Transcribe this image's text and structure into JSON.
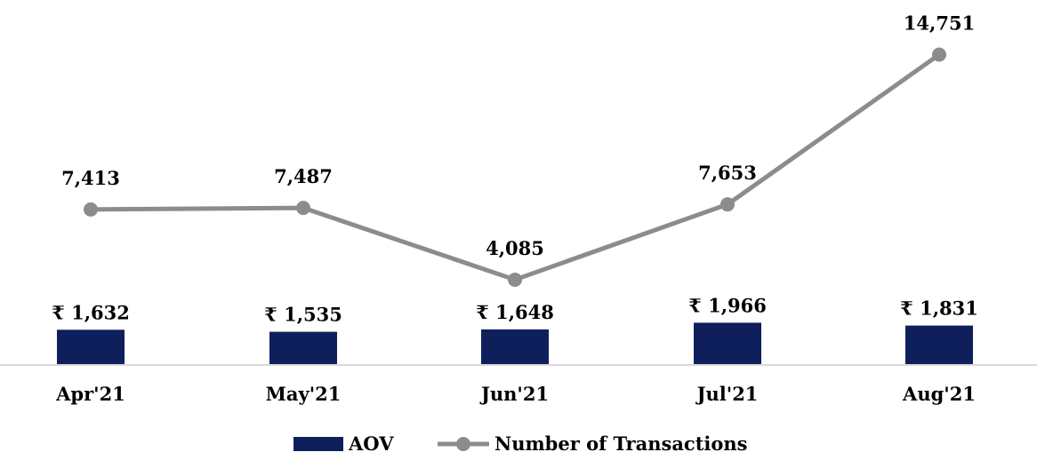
{
  "chart_data": {
    "type": "bar+line",
    "categories": [
      "Apr'21",
      "May'21",
      "Jun'21",
      "Jul'21",
      "Aug'21"
    ],
    "series": [
      {
        "name": "AOV",
        "type": "bar",
        "values": [
          1632,
          1535,
          1648,
          1966,
          1831
        ],
        "labels": [
          "₹ 1,632",
          "₹ 1,535",
          "₹ 1,648",
          "₹ 1,966",
          "₹ 1,831"
        ],
        "color": "#0f1f5c"
      },
      {
        "name": "Number of Transactions",
        "type": "line",
        "values": [
          7413,
          7487,
          4085,
          7653,
          14751
        ],
        "labels": [
          "7,413",
          "7,487",
          "4,085",
          "7,653",
          "14,751"
        ],
        "color": "#8c8c8c"
      }
    ],
    "legend": {
      "position": "bottom",
      "entries": [
        "AOV",
        "Number of Transactions"
      ]
    },
    "grid": false,
    "axis_color": "#d9d9d9"
  }
}
